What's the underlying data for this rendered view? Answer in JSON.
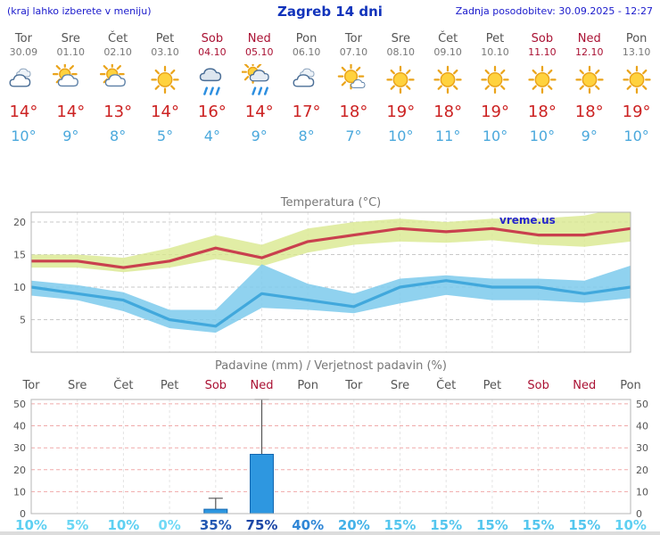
{
  "header": {
    "left_note": "(kraj lahko izberete v meniju)",
    "title": "Zagreb 14 dni",
    "last_update": "Zadnja posodobitev: 30.09.2025 - 12:27"
  },
  "colors": {
    "header_blue": "#1a1acc",
    "title_blue": "#1133bb",
    "weekday_gray": "#555555",
    "weekend_red": "#aa1133",
    "temp_high_red": "#cc2222",
    "temp_low_blue": "#4aa8dc",
    "chart_title_gray": "#777777",
    "watermark_blue": "#2626cc"
  },
  "days": [
    {
      "name": "Tor",
      "date": "30.09",
      "weekend": false,
      "icon": "cloudy",
      "high": "14°",
      "low": "10°"
    },
    {
      "name": "Sre",
      "date": "01.10",
      "weekend": false,
      "icon": "partly-cloudy",
      "high": "14°",
      "low": "9°"
    },
    {
      "name": "Čet",
      "date": "02.10",
      "weekend": false,
      "icon": "partly-cloudy",
      "high": "13°",
      "low": "8°"
    },
    {
      "name": "Pet",
      "date": "03.10",
      "weekend": false,
      "icon": "sunny",
      "high": "14°",
      "low": "5°"
    },
    {
      "name": "Sob",
      "date": "04.10",
      "weekend": true,
      "icon": "rain",
      "high": "16°",
      "low": "4°"
    },
    {
      "name": "Ned",
      "date": "05.10",
      "weekend": true,
      "icon": "rain-sun",
      "high": "14°",
      "low": "9°"
    },
    {
      "name": "Pon",
      "date": "06.10",
      "weekend": false,
      "icon": "cloudy",
      "high": "17°",
      "low": "8°"
    },
    {
      "name": "Tor",
      "date": "07.10",
      "weekend": false,
      "icon": "mostly-sunny",
      "high": "18°",
      "low": "7°"
    },
    {
      "name": "Sre",
      "date": "08.10",
      "weekend": false,
      "icon": "sunny",
      "high": "19°",
      "low": "10°"
    },
    {
      "name": "Čet",
      "date": "09.10",
      "weekend": false,
      "icon": "sunny",
      "high": "18°",
      "low": "11°"
    },
    {
      "name": "Pet",
      "date": "10.10",
      "weekend": false,
      "icon": "sunny",
      "high": "19°",
      "low": "10°"
    },
    {
      "name": "Sob",
      "date": "11.10",
      "weekend": true,
      "icon": "sunny",
      "high": "18°",
      "low": "10°"
    },
    {
      "name": "Ned",
      "date": "12.10",
      "weekend": true,
      "icon": "sunny",
      "high": "18°",
      "low": "9°"
    },
    {
      "name": "Pon",
      "date": "13.10",
      "weekend": false,
      "icon": "sunny",
      "high": "19°",
      "low": "10°"
    }
  ],
  "chart_data": [
    {
      "type": "area",
      "title": "Temperatura (°C)",
      "watermark": "vreme.us",
      "x_labels": [
        "30.09",
        "01.10",
        "02.10",
        "03.10",
        "04.10",
        "05.10",
        "06.10",
        "07.10",
        "08.10",
        "09.10",
        "10.10",
        "11.10",
        "12.10",
        "13.10"
      ],
      "ylim": [
        0,
        21.5
      ],
      "yticks": [
        5,
        10,
        15,
        20
      ],
      "grid": true,
      "series": [
        {
          "name": "max temperatura",
          "color": "#c9404e",
          "values": [
            14,
            14,
            13,
            14,
            16,
            14.5,
            17,
            18,
            19,
            18.5,
            19,
            18,
            18,
            19
          ]
        },
        {
          "name": "min temperatura",
          "color": "#41a8dc",
          "values": [
            10,
            9,
            8,
            5,
            4,
            9,
            8,
            7,
            10,
            11,
            10,
            10,
            9,
            10
          ]
        }
      ],
      "bands": [
        {
          "name": "max temperatura razpon",
          "color": "#d9e88f",
          "opacity": 0.8,
          "top": [
            15,
            15,
            14.5,
            16,
            18,
            16.5,
            19,
            20,
            20.5,
            20,
            20.5,
            20.5,
            21,
            22.5
          ],
          "bottom": [
            13,
            13,
            12.3,
            13,
            14.3,
            13.2,
            15.3,
            16.5,
            17,
            16.8,
            17.2,
            16.5,
            16.2,
            17
          ]
        },
        {
          "name": "min temperatura razpon",
          "color": "#7ccaec",
          "opacity": 0.85,
          "top": [
            11,
            10.3,
            9.2,
            6.5,
            6.5,
            13.5,
            10.5,
            9,
            11.3,
            11.8,
            11.3,
            11.3,
            11,
            13.3
          ],
          "bottom": [
            8.7,
            8,
            6.3,
            3.7,
            3,
            6.8,
            6.5,
            6,
            7.5,
            8.8,
            8,
            8,
            7.6,
            8.3
          ]
        }
      ]
    },
    {
      "type": "bar",
      "title": "Padavine (mm) / Verjetnost padavin (%)",
      "categories": [
        "Tor",
        "Sre",
        "Čet",
        "Pet",
        "Sob",
        "Ned",
        "Pon",
        "Tor",
        "Sre",
        "Čet",
        "Pet",
        "Sob",
        "Ned",
        "Pon"
      ],
      "weekend_indices": [
        4,
        5,
        11,
        12
      ],
      "ylim": [
        0,
        52
      ],
      "yticks": [
        0,
        10,
        20,
        30,
        40,
        50
      ],
      "precip_mm": [
        0,
        0,
        0,
        0,
        2,
        27,
        0,
        0,
        0,
        0,
        0,
        0,
        0,
        0
      ],
      "precip_max_mm": [
        0,
        0,
        0,
        0,
        7,
        52,
        0,
        0,
        0,
        0,
        0,
        0,
        0,
        0
      ],
      "probability_pct": [
        10,
        5,
        10,
        0,
        35,
        75,
        40,
        20,
        15,
        15,
        15,
        15,
        15,
        10
      ],
      "probability_colors": [
        "#5ed0f2",
        "#69d6f4",
        "#5ed0f2",
        "#70d9f6",
        "#2358b2",
        "#1c46a6",
        "#2f86d6",
        "#45b2e8",
        "#54c6ee",
        "#54c6ee",
        "#54c6ee",
        "#54c6ee",
        "#54c6ee",
        "#5ed0f2"
      ],
      "bar_color": "#2e97e0",
      "bar_border": "#1467b0"
    }
  ]
}
